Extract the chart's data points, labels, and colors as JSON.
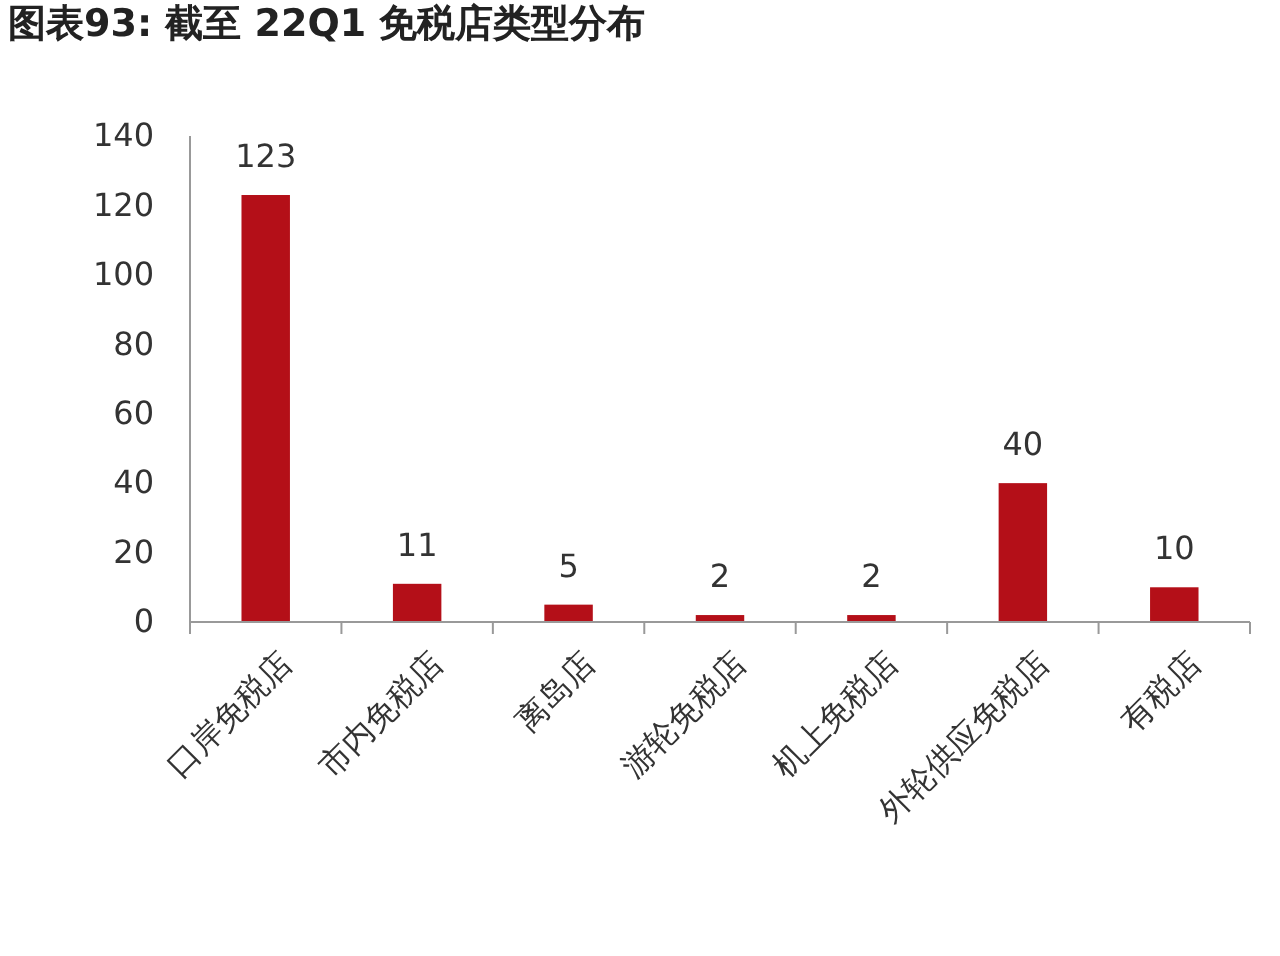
{
  "chart_data": {
    "type": "bar",
    "title": "图表93: 截至 22Q1 免税店类型分布",
    "categories": [
      "口岸免税店",
      "市内免税店",
      "离岛店",
      "游轮免税店",
      "机上免税店",
      "外轮供应免税店",
      "有税店"
    ],
    "values": [
      123,
      11,
      5,
      2,
      2,
      40,
      10
    ],
    "color": "#b40f18",
    "ylim": [
      0,
      140
    ],
    "yticks": [
      0,
      20,
      40,
      60,
      80,
      100,
      120,
      140
    ],
    "data_labels": true,
    "grid": false
  }
}
